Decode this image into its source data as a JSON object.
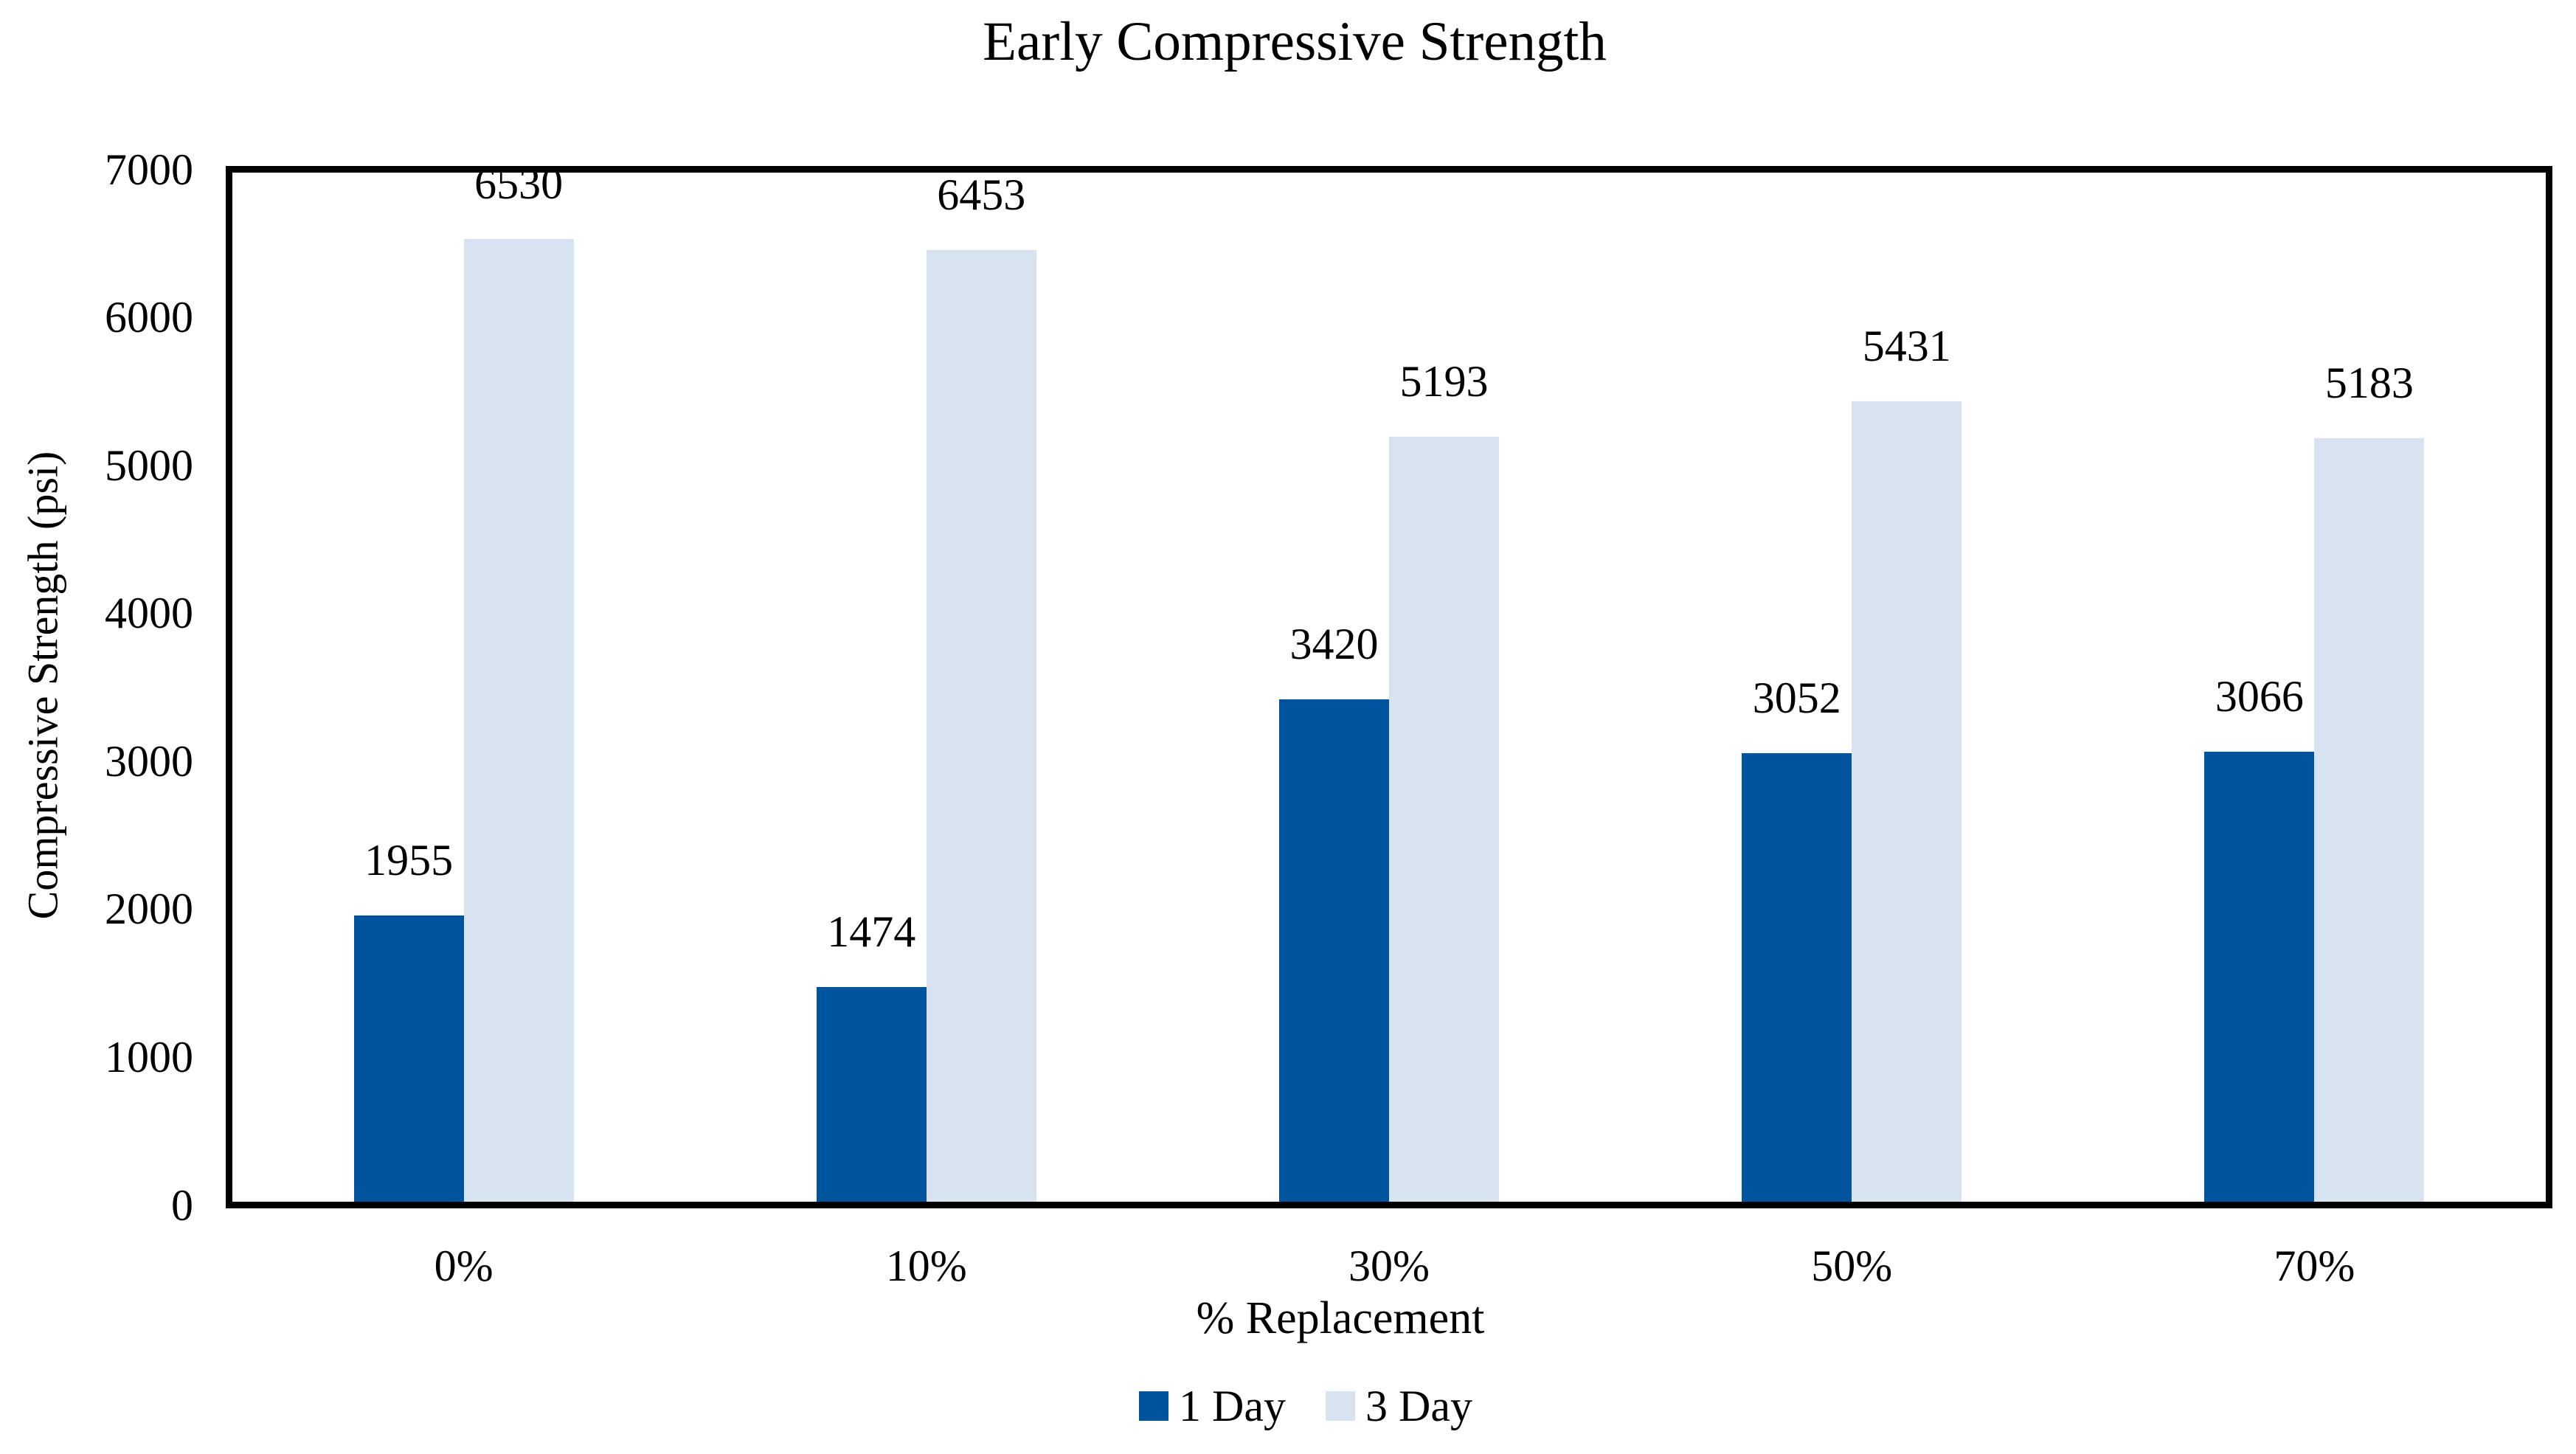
{
  "chart_data": {
    "type": "bar",
    "title": "Early Compressive Strength",
    "xlabel": "% Replacement",
    "ylabel": "Compressive Strength (psi)",
    "categories": [
      "0%",
      "10%",
      "30%",
      "50%",
      "70%"
    ],
    "series": [
      {
        "name": "1 Day",
        "color": "#00549D",
        "values": [
          1955,
          1474,
          3420,
          3052,
          3066
        ]
      },
      {
        "name": "3 Day",
        "color": "#D8E3F2",
        "values": [
          6530,
          6453,
          5193,
          5431,
          5183
        ]
      }
    ],
    "ylim": [
      0,
      7000
    ],
    "ytick_step": 1000,
    "yticks": [
      "0",
      "1000",
      "2000",
      "3000",
      "4000",
      "5000",
      "6000",
      "7000"
    ],
    "grid": false,
    "data_labels": true,
    "legend_position": "bottom-center",
    "plot_border_color": "#000000",
    "text_color": "#000000",
    "background_color": "#FFFFFF"
  }
}
